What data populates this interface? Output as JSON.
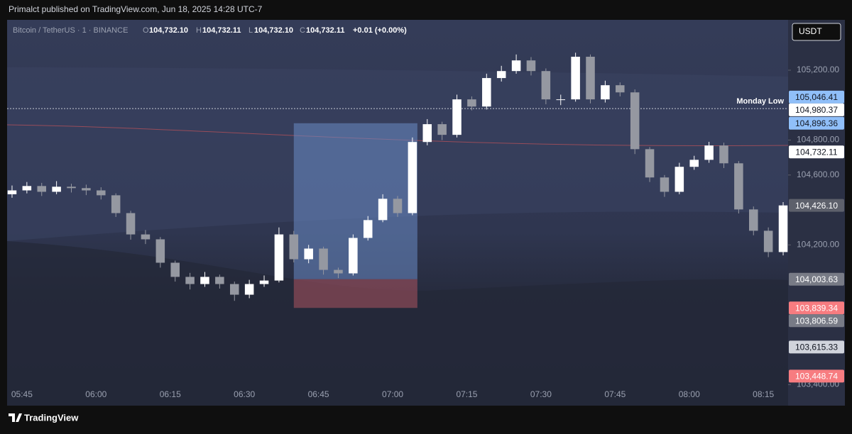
{
  "header": {
    "published": "Primalct published on TradingView.com, Jun 18, 2025 14:28 UTC-7",
    "symbol": "Bitcoin / TetherUS · 1 · BINANCE",
    "o_key": "O",
    "o": "104,732.10",
    "h_key": "H",
    "h": "104,732.11",
    "l_key": "L",
    "l": "104,732.10",
    "c_key": "C",
    "c": "104,732.11",
    "change": "+0.01 (+0.00%)",
    "currency": "USDT"
  },
  "footer": {
    "brand": "TradingView"
  },
  "chart_data": {
    "type": "candlestick",
    "x": [
      "05:43",
      "05:46",
      "05:49",
      "05:52",
      "05:55",
      "05:58",
      "06:01",
      "06:04",
      "06:07",
      "06:10",
      "06:13",
      "06:16",
      "06:19",
      "06:22",
      "06:25",
      "06:28",
      "06:31",
      "06:34",
      "06:37",
      "06:40",
      "06:43",
      "06:46",
      "06:49",
      "06:52",
      "06:55",
      "06:58",
      "07:01",
      "07:04",
      "07:07",
      "07:10",
      "07:13",
      "07:16",
      "07:19",
      "07:22",
      "07:25",
      "07:28",
      "07:31",
      "07:34",
      "07:37",
      "07:40",
      "07:43",
      "07:46",
      "07:49",
      "07:52",
      "07:55",
      "07:58",
      "08:01",
      "08:04",
      "08:07",
      "08:10",
      "08:13",
      "08:16",
      "08:19"
    ],
    "open": [
      104490,
      104512,
      104537,
      104504,
      104533,
      104525,
      104512,
      104484,
      104382,
      104260,
      104232,
      104098,
      104017,
      103976,
      104017,
      103976,
      103915,
      103976,
      103996,
      104260,
      104118,
      104179,
      104057,
      104037,
      104240,
      104342,
      104464,
      104382,
      104789,
      104891,
      104830,
      105033,
      104992,
      105155,
      105195,
      105256,
      105195,
      105033,
      105033,
      105277,
      105033,
      105114,
      105073,
      104748,
      104586,
      104504,
      104647,
      104687,
      104769,
      104667,
      104403,
      104281,
      104159
    ],
    "high": [
      104540,
      104560,
      104555,
      104565,
      104550,
      104545,
      104530,
      104495,
      104395,
      104285,
      104245,
      104110,
      104040,
      104045,
      104030,
      103990,
      104000,
      104025,
      104300,
      104280,
      104200,
      104190,
      104070,
      104260,
      104365,
      104490,
      104480,
      104815,
      104920,
      104905,
      105060,
      105050,
      105180,
      105225,
      105290,
      105275,
      105210,
      105060,
      105300,
      105290,
      105140,
      105130,
      105090,
      104760,
      104600,
      104670,
      104710,
      104790,
      104785,
      104680,
      104420,
      104300,
      104445
    ],
    "low": [
      104470,
      104495,
      104480,
      104490,
      104500,
      104485,
      104460,
      104360,
      104230,
      104205,
      104070,
      103990,
      103945,
      103960,
      103950,
      103880,
      103895,
      103960,
      103985,
      104100,
      104095,
      104030,
      104010,
      104025,
      104225,
      104330,
      104360,
      104370,
      104770,
      104800,
      104815,
      104970,
      104975,
      105135,
      105180,
      105170,
      105005,
      105000,
      105020,
      105010,
      105015,
      105050,
      104720,
      104560,
      104475,
      104490,
      104630,
      104670,
      104640,
      104380,
      104255,
      104130,
      104140
    ],
    "close": [
      104512,
      104537,
      104504,
      104533,
      104525,
      104512,
      104484,
      104382,
      104260,
      104232,
      104098,
      104017,
      103976,
      104017,
      103976,
      103915,
      103976,
      103996,
      104260,
      104118,
      104179,
      104057,
      104037,
      104240,
      104342,
      104464,
      104382,
      104789,
      104891,
      104830,
      105033,
      104992,
      105155,
      105195,
      105256,
      105195,
      105033,
      105033,
      105277,
      105033,
      105114,
      105073,
      104748,
      104586,
      104504,
      104647,
      104687,
      104769,
      104667,
      104403,
      104281,
      104159,
      104426
    ],
    "up_color": "#ffffff",
    "down_color": "#9598a1",
    "xlim": [
      "05:42",
      "08:20"
    ],
    "xticks": [
      "05:45",
      "06:00",
      "06:15",
      "06:30",
      "06:45",
      "07:00",
      "07:15",
      "07:30",
      "07:45",
      "08:00",
      "08:15"
    ],
    "ylim": [
      103280,
      105480
    ],
    "yticks": [
      {
        "value": 105200,
        "label": "105,200.00"
      },
      {
        "value": 104800,
        "label": "104,800.00"
      },
      {
        "value": 104600,
        "label": "104,600.00"
      },
      {
        "value": 104200,
        "label": "104,200.00"
      },
      {
        "value": 103400,
        "label": "103,400.00"
      }
    ],
    "levels": [
      {
        "label": "Monday Low",
        "value": 104980.37
      }
    ],
    "position": {
      "start": "06:40",
      "end": "07:05",
      "target": 104896.36,
      "entry": 104003.63,
      "stop": 103839.34
    },
    "price_labels": [
      {
        "value": 105046.41,
        "label": "105,046.41",
        "color": "#90bff9",
        "text_color": "#131722"
      },
      {
        "value": 104980.37,
        "label": "104,980.37",
        "color": "#ffffff",
        "text_color": "#131722"
      },
      {
        "value": 104896.36,
        "label": "104,896.36",
        "color": "#90bff9",
        "text_color": "#131722"
      },
      {
        "value": 104732.11,
        "label": "104,732.11",
        "color": "#ffffff",
        "text_color": "#131722"
      },
      {
        "value": 104426.1,
        "label": "104,426.10",
        "color": "#5d606b",
        "text_color": "#ffffff"
      },
      {
        "value": 104003.63,
        "label": "104,003.63",
        "color": "#787b86",
        "text_color": "#ffffff"
      },
      {
        "value": 103839.34,
        "label": "103,839.34",
        "color": "#f77c80",
        "text_color": "#ffffff"
      },
      {
        "value": 103806.59,
        "label": "103,806.59",
        "color": "#787b86",
        "text_color": "#ffffff"
      },
      {
        "value": 103615.33,
        "label": "103,615.33",
        "color": "#d1d4dc",
        "text_color": "#131722"
      },
      {
        "value": 103448.74,
        "label": "103,448.74",
        "color": "#f77c80",
        "text_color": "#ffffff"
      }
    ]
  }
}
